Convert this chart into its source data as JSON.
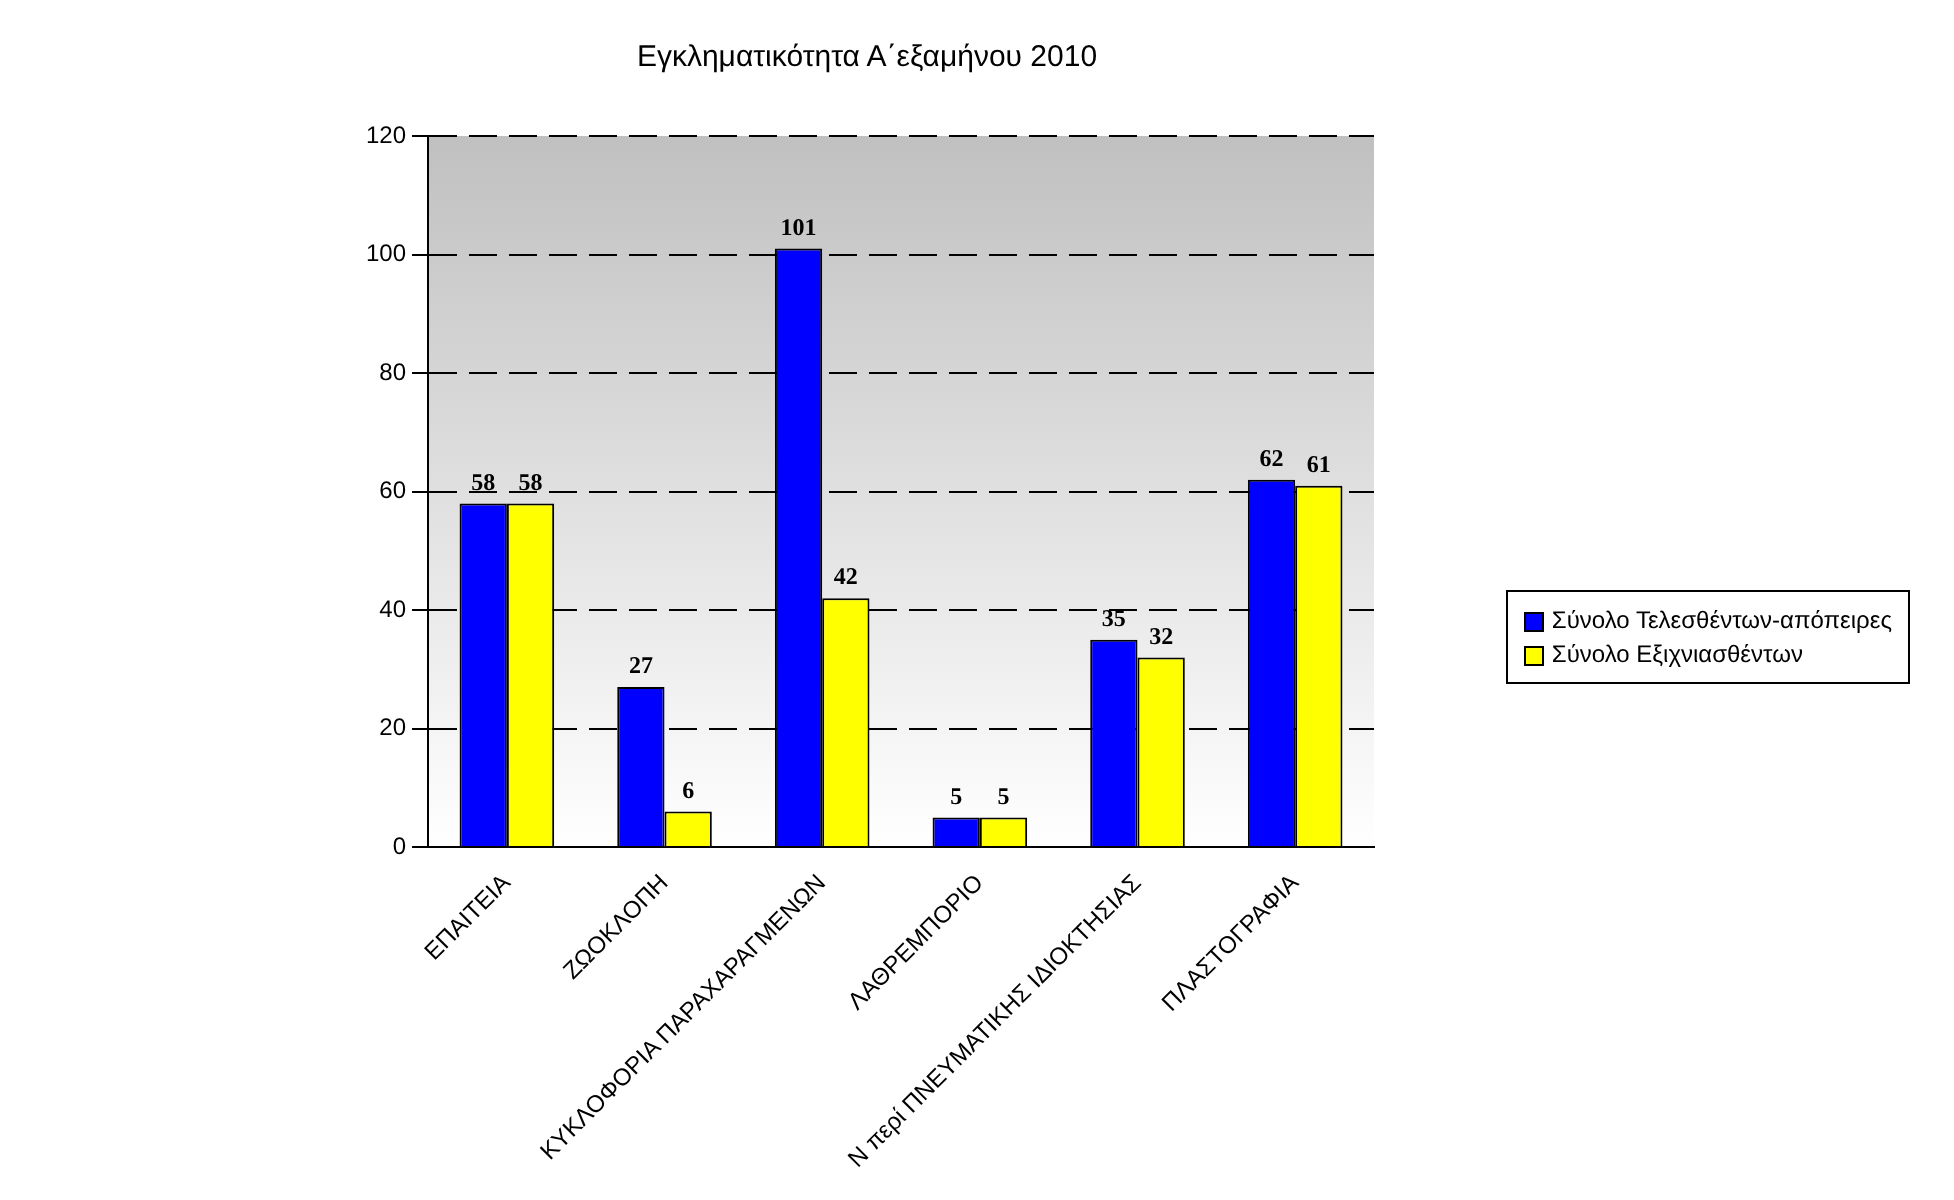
{
  "chart_data": {
    "type": "bar",
    "title": "Εγκληματικότητα Α΄εξαμήνου 2010",
    "categories": [
      "ΕΠΑΙΤΕΙΑ",
      "ΖΩΟΚΛΟΠΗ",
      "ΚΥΚΛΟΦΟΡΙΑ ΠΑΡΑΧΑΡΑΓΜΕΝΩΝ",
      "ΛΑΘΡΕΜΠΟΡΙΟ",
      "Ν περί ΠΝΕΥΜΑΤΙΚΗΣ ΙΔΙΟΚΤΗΣΙΑΣ",
      "ΠΛΑΣΤΟΓΡΑΦΙΑ"
    ],
    "series": [
      {
        "name": "Σύνολο Τελεσθέντων-απόπειρες",
        "color": "#0000ff",
        "values": [
          58,
          27,
          101,
          5,
          35,
          62
        ]
      },
      {
        "name": "Σύνολο Εξιχνιασθέντων",
        "color": "#ffff00",
        "values": [
          58,
          6,
          42,
          5,
          32,
          61
        ]
      }
    ],
    "ylim": [
      0,
      120
    ],
    "yticks": [
      0,
      20,
      40,
      60,
      80,
      100,
      120
    ],
    "grid": "y",
    "legend": "right",
    "data_labels": true
  }
}
